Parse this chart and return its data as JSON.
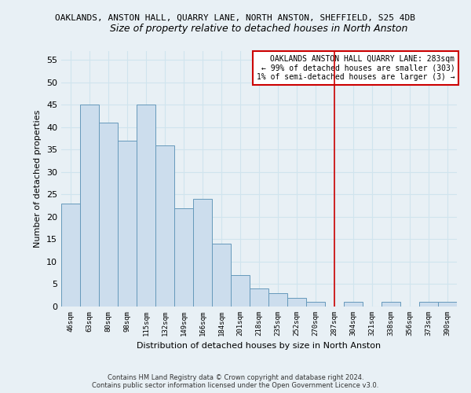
{
  "title_line1": "OAKLANDS, ANSTON HALL, QUARRY LANE, NORTH ANSTON, SHEFFIELD, S25 4DB",
  "title_line2": "Size of property relative to detached houses in North Anston",
  "xlabel": "Distribution of detached houses by size in North Anston",
  "ylabel": "Number of detached properties",
  "bin_labels": [
    "46sqm",
    "63sqm",
    "80sqm",
    "98sqm",
    "115sqm",
    "132sqm",
    "149sqm",
    "166sqm",
    "184sqm",
    "201sqm",
    "218sqm",
    "235sqm",
    "252sqm",
    "270sqm",
    "287sqm",
    "304sqm",
    "321sqm",
    "338sqm",
    "356sqm",
    "373sqm",
    "390sqm"
  ],
  "bar_heights": [
    23,
    45,
    41,
    37,
    45,
    36,
    22,
    24,
    14,
    7,
    4,
    3,
    2,
    1,
    0,
    1,
    0,
    1,
    0,
    1,
    1
  ],
  "bar_color": "#ccdded",
  "bar_edge_color": "#6699bb",
  "grid_color": "#d0e4ee",
  "reference_line_x": 14,
  "reference_line_color": "#cc0000",
  "ylim": [
    0,
    57
  ],
  "yticks": [
    0,
    5,
    10,
    15,
    20,
    25,
    30,
    35,
    40,
    45,
    50,
    55
  ],
  "annotation_title": "OAKLANDS ANSTON HALL QUARRY LANE: 283sqm",
  "annotation_line2": "← 99% of detached houses are smaller (303)",
  "annotation_line3": "1% of semi-detached houses are larger (3) →",
  "footer_line1": "Contains HM Land Registry data © Crown copyright and database right 2024.",
  "footer_line2": "Contains public sector information licensed under the Open Government Licence v3.0.",
  "background_color": "#e8f0f5"
}
